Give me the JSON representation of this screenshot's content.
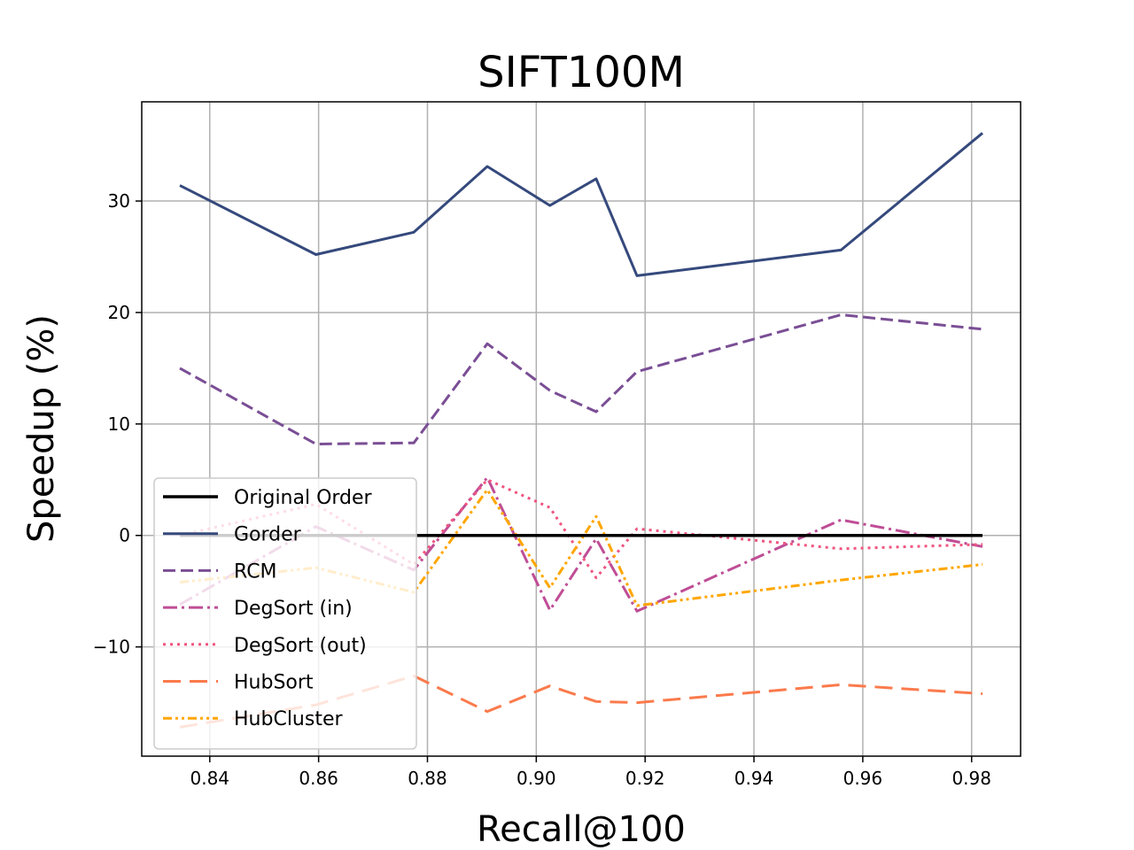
{
  "chart_data": {
    "type": "line",
    "title": "SIFT100M",
    "xlabel": "Recall@100",
    "ylabel": "Speedup (%)",
    "xlim": [
      0.8275,
      0.989
    ],
    "ylim": [
      -19.8,
      38.9
    ],
    "xticks": [
      0.84,
      0.86,
      0.88,
      0.9,
      0.92,
      0.94,
      0.96,
      0.98
    ],
    "xtick_labels": [
      "0.84",
      "0.86",
      "0.88",
      "0.90",
      "0.92",
      "0.94",
      "0.96",
      "0.98"
    ],
    "yticks": [
      -10,
      0,
      10,
      20,
      30
    ],
    "ytick_labels": [
      "−10",
      "0",
      "10",
      "20",
      "30"
    ],
    "grid": true,
    "legend_position": "lower-left",
    "x": [
      0.8345,
      0.8595,
      0.8775,
      0.891,
      0.9025,
      0.911,
      0.9185,
      0.956,
      0.982
    ],
    "series": [
      {
        "name": "Original Order",
        "color": "#000000",
        "dash": "solid",
        "width": 3.5,
        "values": [
          0,
          0,
          0,
          0,
          0,
          0,
          0,
          0,
          0
        ]
      },
      {
        "name": "Gorder",
        "color": "#35497c",
        "dash": "solid",
        "width": 3,
        "values": [
          31.4,
          25.2,
          27.2,
          33.1,
          29.6,
          32.0,
          23.3,
          25.6,
          36.1
        ]
      },
      {
        "name": "RCM",
        "color": "#7a4e95",
        "dash": "dashed",
        "width": 3,
        "values": [
          15.0,
          8.2,
          8.3,
          17.2,
          13.0,
          11.1,
          14.7,
          19.8,
          18.5
        ]
      },
      {
        "name": "DegSort (in)",
        "color": "#bf4d95",
        "dash": "dashdot",
        "width": 3,
        "values": [
          -6.2,
          0.8,
          -3.1,
          5.2,
          -6.7,
          -0.3,
          -6.8,
          1.4,
          -1.0
        ]
      },
      {
        "name": "DegSort (out)",
        "color": "#ef5580",
        "dash": "dotted",
        "width": 3,
        "values": [
          0.0,
          2.8,
          -2.6,
          5.0,
          2.5,
          -3.8,
          0.6,
          -1.2,
          -0.8
        ]
      },
      {
        "name": "HubSort",
        "color": "#fb7a4c",
        "dash": "longdash",
        "width": 3,
        "values": [
          -17.2,
          -15.2,
          -12.6,
          -15.8,
          -13.5,
          -14.9,
          -15.0,
          -13.4,
          -14.2
        ]
      },
      {
        "name": "HubCluster",
        "color": "#ffa600",
        "dash": "dashdotdot",
        "width": 3,
        "values": [
          -4.2,
          -2.9,
          -5.1,
          4.1,
          -4.7,
          1.7,
          -6.3,
          -4.0,
          -2.6
        ]
      }
    ]
  }
}
